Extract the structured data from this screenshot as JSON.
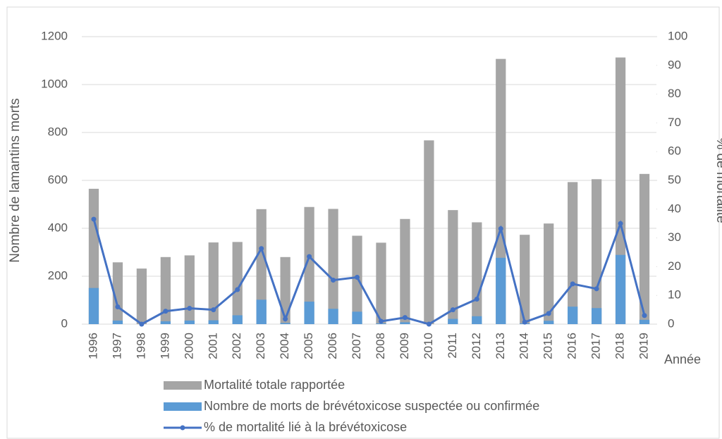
{
  "chart_data": {
    "type": "bar",
    "stacked": false,
    "categories": [
      "1996",
      "1997",
      "1998",
      "1999",
      "2000",
      "2001",
      "2002",
      "2003",
      "2004",
      "2005",
      "2006",
      "2007",
      "2008",
      "2009",
      "2010",
      "2011",
      "2012",
      "2013",
      "2014",
      "2015",
      "2016",
      "2017",
      "2018",
      "2019"
    ],
    "series": [
      {
        "name": "Mortalité totale rapportée",
        "color": "#a5a5a5",
        "type": "bar",
        "values": [
          565,
          258,
          232,
          280,
          287,
          341,
          343,
          480,
          280,
          489,
          481,
          369,
          340,
          439,
          767,
          476,
          425,
          1107,
          373,
          420,
          593,
          605,
          1113,
          627
        ]
      },
      {
        "name": "Nombre de morts de brévétoxicose suspectée ou confirmée",
        "color": "#5b9bd5",
        "type": "bar",
        "values": [
          151,
          15,
          0,
          12,
          15,
          16,
          37,
          102,
          5,
          94,
          64,
          52,
          3,
          8,
          0,
          22,
          33,
          277,
          3,
          14,
          73,
          67,
          289,
          18
        ]
      },
      {
        "name": "% de mortalité lié à la brévétoxicose",
        "color": "#4472c4",
        "type": "line",
        "axis": "y2",
        "values": [
          36.5,
          6,
          0,
          4.5,
          5.5,
          5,
          12,
          26.3,
          1.8,
          23.5,
          15.3,
          16.3,
          1,
          2.3,
          0,
          5,
          8.7,
          33.2,
          0.7,
          3.7,
          14,
          12.3,
          35,
          3
        ]
      }
    ],
    "y_label": "Nombre de lamantins morts",
    "y2_label": "% de mortalité",
    "x_label": "Année",
    "ylim": [
      0,
      1200
    ],
    "yticks": [
      0,
      200,
      400,
      600,
      800,
      1000,
      1200
    ],
    "y2lim": [
      0,
      100
    ],
    "y2ticks": [
      0,
      10,
      20,
      30,
      40,
      50,
      60,
      70,
      80,
      90,
      100
    ],
    "grid": true,
    "legend": "bottom"
  }
}
